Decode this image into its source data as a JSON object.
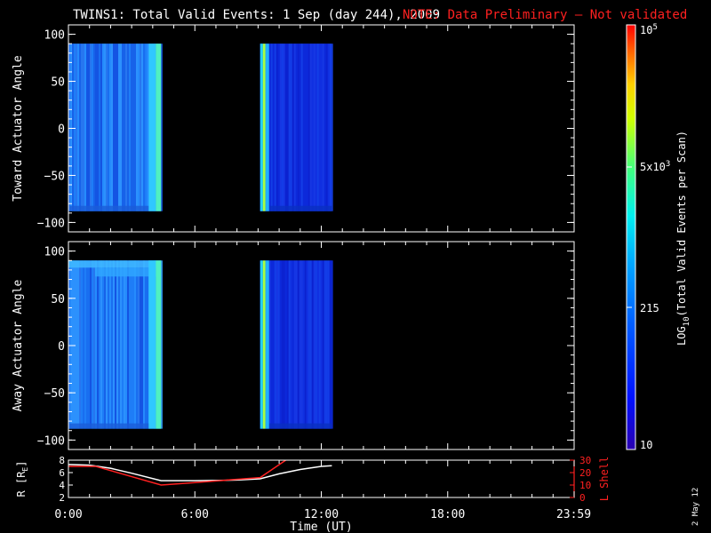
{
  "header": {
    "title": "TWINS1: Total Valid Events:  1 Sep (day 244), 2009",
    "note": "NOTE: Data Preliminary – Not validated"
  },
  "colors": {
    "background": "#000000",
    "axes": "#ffffff",
    "note": "#ff2020",
    "r_line": "#ffffff",
    "lshell_line": "#ff2020"
  },
  "colorbar": {
    "label": "LOG10(Total Valid Events per Scan)",
    "label_main": "LOG",
    "label_sub": "10",
    "label_rest": "(Total Valid Events per Scan)",
    "tick_top": "10",
    "tick_top_sup": "5",
    "tick_mid_main": "5x10",
    "tick_mid_sup": "3",
    "tick_215": "215",
    "tick_bottom": "10",
    "scale": "log",
    "range": [
      10,
      100000
    ]
  },
  "side_text": "2 May 12",
  "chart_data": [
    {
      "type": "heatmap",
      "ylabel": "Toward Actuator Angle",
      "ylim": [
        -110,
        110
      ],
      "yticks": [
        "100",
        "50",
        "0",
        "−50",
        "−100"
      ],
      "ytick_values": [
        100,
        50,
        0,
        -50,
        -100
      ],
      "xlim": [
        0,
        24
      ],
      "data_blocks": [
        {
          "t_start": 0.0,
          "t_end": 4.4,
          "angle_range": [
            -88,
            90
          ],
          "level": "mid",
          "edge_bright_end": true
        },
        {
          "t_start": 9.1,
          "t_end": 12.5,
          "angle_range": [
            -88,
            90
          ],
          "level": "low",
          "edge_bright_start": true
        }
      ]
    },
    {
      "type": "heatmap",
      "ylabel": "Away Actuator Angle",
      "ylim": [
        -110,
        110
      ],
      "yticks": [
        "100",
        "50",
        "0",
        "−50",
        "−100"
      ],
      "ytick_values": [
        100,
        50,
        0,
        -50,
        -100
      ],
      "xlim": [
        0,
        24
      ],
      "data_blocks": [
        {
          "t_start": 0.0,
          "t_end": 4.4,
          "angle_range": [
            -88,
            90
          ],
          "level": "mid",
          "edge_bright_end": true,
          "bright_band_top": true
        },
        {
          "t_start": 9.1,
          "t_end": 12.5,
          "angle_range": [
            -88,
            90
          ],
          "level": "low",
          "edge_bright_start": true
        }
      ]
    },
    {
      "type": "line",
      "xlabel": "Time (UT)",
      "xlim": [
        0,
        24
      ],
      "xticks": [
        "0:00",
        "6:00",
        "12:00",
        "18:00",
        "23:59"
      ],
      "xtick_values": [
        0,
        6,
        12,
        18,
        23.98
      ],
      "ylabel_left": "R [RE]",
      "ylabel_left_main": "R [R",
      "ylabel_left_sub": "E",
      "ylabel_left_end": "]",
      "ylim_left": [
        2,
        8
      ],
      "yticks_left": [
        "2",
        "4",
        "6",
        "8"
      ],
      "ylabel_right": "L Shell",
      "ylim_right": [
        0,
        30
      ],
      "yticks_right": [
        "0",
        "10",
        "20",
        "30"
      ],
      "series": [
        {
          "axis": "left",
          "color": "#ffffff",
          "x": [
            0,
            1.0,
            2.0,
            3.0,
            4.4,
            6.0,
            8.0,
            9.1,
            10.0,
            11.0,
            12.0,
            12.5
          ],
          "y": [
            7.3,
            7.2,
            6.7,
            5.9,
            4.7,
            4.7,
            4.8,
            5.0,
            5.8,
            6.5,
            7.0,
            7.1
          ]
        },
        {
          "axis": "right",
          "color": "#ff2020",
          "x": [
            0,
            1.3,
            4.4,
            6.0,
            9.1,
            10.4
          ],
          "y": [
            25,
            25,
            10,
            12,
            16,
            31
          ]
        }
      ]
    }
  ]
}
